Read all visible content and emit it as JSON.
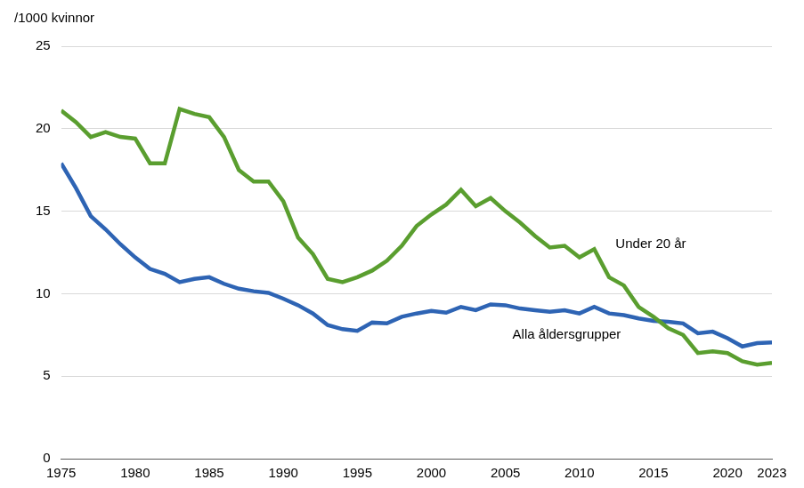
{
  "chart_data": {
    "type": "line",
    "y_label": "/1000 kvinnor",
    "x": [
      1975,
      1976,
      1977,
      1978,
      1979,
      1980,
      1981,
      1982,
      1983,
      1984,
      1985,
      1986,
      1987,
      1988,
      1989,
      1990,
      1991,
      1992,
      1993,
      1994,
      1995,
      1996,
      1997,
      1998,
      1999,
      2000,
      2001,
      2002,
      2003,
      2004,
      2005,
      2006,
      2007,
      2008,
      2009,
      2010,
      2011,
      2012,
      2013,
      2014,
      2015,
      2016,
      2017,
      2018,
      2019,
      2020,
      2021,
      2022,
      2023
    ],
    "series": [
      {
        "name": "Under 20 år",
        "color": "#5a9e2f",
        "values": [
          21.1,
          20.4,
          19.5,
          19.8,
          19.5,
          19.4,
          17.9,
          17.9,
          21.2,
          20.9,
          20.7,
          19.5,
          17.5,
          16.8,
          16.8,
          15.6,
          13.4,
          12.4,
          10.9,
          10.7,
          11.0,
          11.4,
          12.0,
          12.9,
          14.1,
          14.8,
          15.4,
          16.3,
          15.3,
          15.8,
          15.0,
          14.3,
          13.5,
          12.8,
          12.9,
          12.2,
          12.7,
          11.0,
          10.5,
          9.2,
          8.6,
          7.9,
          7.5,
          6.4,
          6.5,
          6.4,
          5.9,
          5.7,
          5.8
        ]
      },
      {
        "name": "Alla åldersgrupper",
        "color": "#2e64b4",
        "values": [
          17.9,
          16.4,
          14.7,
          13.9,
          13.0,
          12.2,
          11.5,
          11.2,
          10.7,
          10.9,
          11.0,
          10.6,
          10.3,
          10.15,
          10.05,
          9.7,
          9.3,
          8.8,
          8.1,
          7.85,
          7.75,
          8.25,
          8.2,
          8.6,
          8.8,
          8.95,
          8.85,
          9.2,
          9.0,
          9.35,
          9.3,
          9.1,
          9.0,
          8.9,
          9.0,
          8.8,
          9.2,
          8.8,
          8.7,
          8.5,
          8.35,
          8.3,
          8.2,
          7.6,
          7.7,
          7.3,
          6.8,
          7.0,
          7.05
        ]
      }
    ],
    "xlim": [
      1975,
      2023
    ],
    "xticks": [
      1975,
      1980,
      1985,
      1990,
      1995,
      2000,
      2005,
      2010,
      2015,
      2020,
      2023
    ],
    "ylim": [
      0,
      25
    ],
    "yticks": [
      0,
      5,
      10,
      15,
      20,
      25
    ],
    "grid": true
  }
}
